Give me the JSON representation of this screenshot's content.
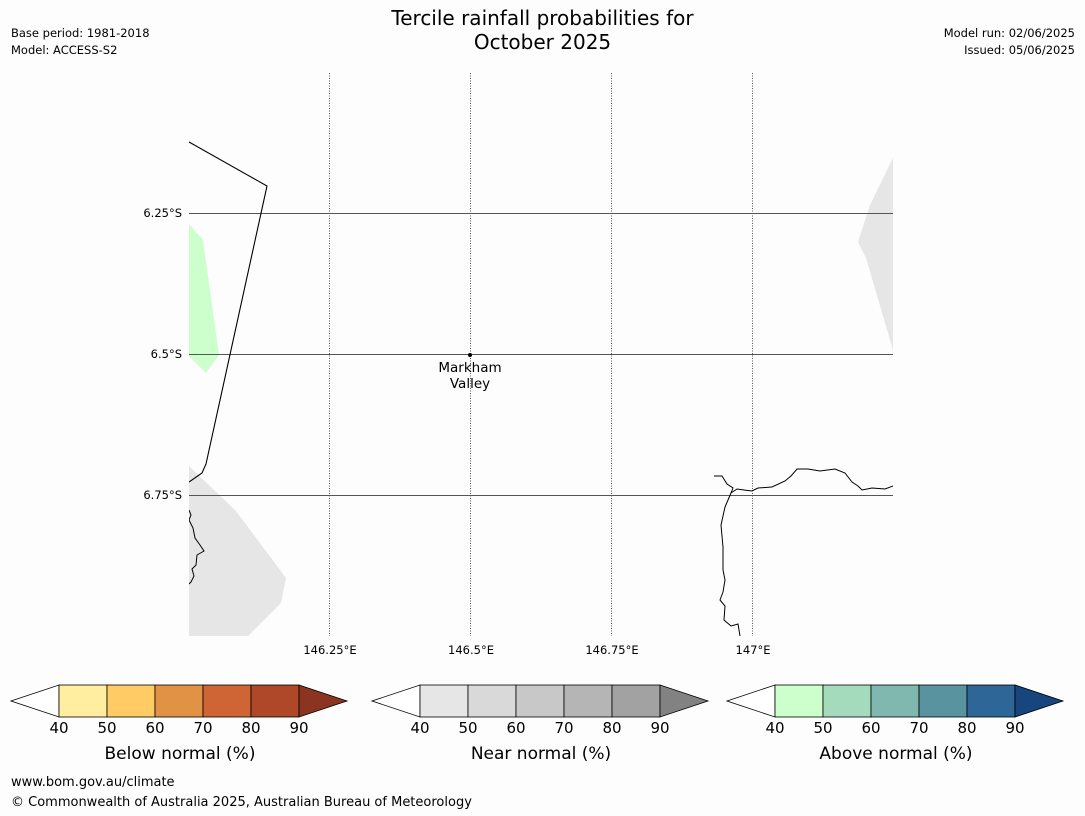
{
  "title_line1": "Tercile rainfall probabilities for",
  "title_line2": "October 2025",
  "meta_left": [
    "Base period: 1981-2018",
    "Model: ACCESS-S2"
  ],
  "meta_right": [
    "Model run: 02/06/2025",
    "Issued: 05/06/2025"
  ],
  "map": {
    "lat_labels": [
      "6.25°S",
      "6.5°S",
      "6.75°S"
    ],
    "lon_labels": [
      "146.25°E",
      "146.5°E",
      "146.75°E",
      "147°E"
    ],
    "place": {
      "name_line1": "Markham",
      "name_line2": "Valley"
    },
    "fill_colors": {
      "above_50": "#ccffcc",
      "near_40": "#e6e6e6"
    },
    "grid_color": "#555555"
  },
  "colorbars": [
    {
      "id": "below",
      "title": "Below normal (%)",
      "ticks": [
        "40",
        "50",
        "60",
        "70",
        "80",
        "90"
      ],
      "colors": [
        "#ffeda0",
        "#fecb65",
        "#e19245",
        "#cf6535",
        "#ae4828",
        "#8b3420"
      ]
    },
    {
      "id": "near",
      "title": "Near normal (%)",
      "ticks": [
        "40",
        "50",
        "60",
        "70",
        "80",
        "90"
      ],
      "colors": [
        "#e6e6e6",
        "#d9d9d9",
        "#c8c8c8",
        "#b5b5b5",
        "#a2a2a2",
        "#828282"
      ]
    },
    {
      "id": "above",
      "title": "Above normal (%)",
      "ticks": [
        "40",
        "50",
        "60",
        "70",
        "80",
        "90"
      ],
      "colors": [
        "#ccffcc",
        "#a4dbbc",
        "#80b8b0",
        "#5a93a0",
        "#2e6697",
        "#16467d"
      ]
    }
  ],
  "footer": {
    "url": "www.bom.gov.au/climate",
    "copyright": "© Commonwealth of Australia 2025, Australian Bureau of Meteorology"
  }
}
